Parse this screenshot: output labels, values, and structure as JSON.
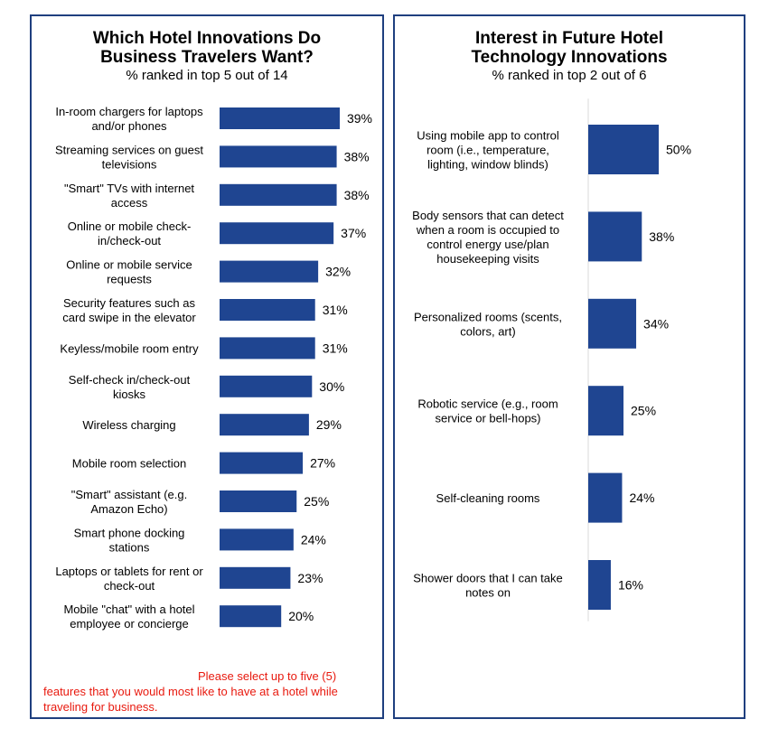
{
  "colors": {
    "bar": "#1f4591",
    "border": "#1f3f7f",
    "note": "#e8190e",
    "axis": "#d9d9d9"
  },
  "left": {
    "title_line1": "Which Hotel Innovations Do",
    "title_line2": "Business Travelers Want?",
    "subtitle": "% ranked in top 5 out of 14",
    "note_line1": "Please select up to five (5)",
    "note_line2": "features that you would most like to have at a hotel while",
    "note_line3": "traveling for business."
  },
  "right": {
    "title_line1": "Interest in Future Hotel",
    "title_line2": "Technology Innovations",
    "subtitle": "% ranked in top 2 out of 6"
  },
  "chart_data": [
    {
      "type": "bar",
      "orientation": "horizontal",
      "title": "Which Hotel Innovations Do Business Travelers Want?",
      "subtitle": "% ranked in top 5 out of 14",
      "categories": [
        [
          "In-room chargers for laptops",
          "and/or phones"
        ],
        [
          "Streaming services on guest",
          "televisions"
        ],
        [
          "\"Smart\" TVs with internet",
          "access"
        ],
        [
          "Online or mobile check-",
          "in/check-out"
        ],
        [
          "Online or mobile service",
          "requests"
        ],
        [
          "Security features such as",
          "card swipe in the elevator"
        ],
        [
          "Keyless/mobile room entry"
        ],
        [
          "Self-check in/check-out",
          "kiosks"
        ],
        [
          "Wireless charging"
        ],
        [
          "Mobile room selection"
        ],
        [
          "\"Smart\" assistant (e.g.",
          "Amazon Echo)"
        ],
        [
          "Smart phone docking",
          "stations"
        ],
        [
          "Laptops or tablets for rent or",
          "check-out"
        ],
        [
          "Mobile \"chat\" with a hotel",
          "employee or concierge"
        ]
      ],
      "values": [
        39,
        38,
        38,
        37,
        32,
        31,
        31,
        30,
        29,
        27,
        25,
        24,
        23,
        20
      ],
      "value_labels": [
        "39%",
        "38%",
        "38%",
        "37%",
        "32%",
        "31%",
        "31%",
        "30%",
        "29%",
        "27%",
        "25%",
        "24%",
        "23%",
        "20%"
      ],
      "unit": "%"
    },
    {
      "type": "bar",
      "orientation": "horizontal",
      "title": "Interest in Future Hotel Technology Innovations",
      "subtitle": "% ranked in top 2 out of 6",
      "categories": [
        [
          "Using mobile app to control",
          "room (i.e., temperature,",
          "lighting, window blinds)"
        ],
        [
          "Body sensors that can detect",
          "when a room is occupied to",
          "control energy use/plan",
          "housekeeping visits"
        ],
        [
          "Personalized rooms (scents,",
          "colors, art)"
        ],
        [
          "Robotic service (e.g., room",
          "service or bell-hops)"
        ],
        [
          "Self-cleaning rooms"
        ],
        [
          "Shower doors that I can take",
          "notes on"
        ]
      ],
      "values": [
        50,
        38,
        34,
        25,
        24,
        16
      ],
      "value_labels": [
        "50%",
        "38%",
        "34%",
        "25%",
        "24%",
        "16%"
      ],
      "unit": "%"
    }
  ]
}
